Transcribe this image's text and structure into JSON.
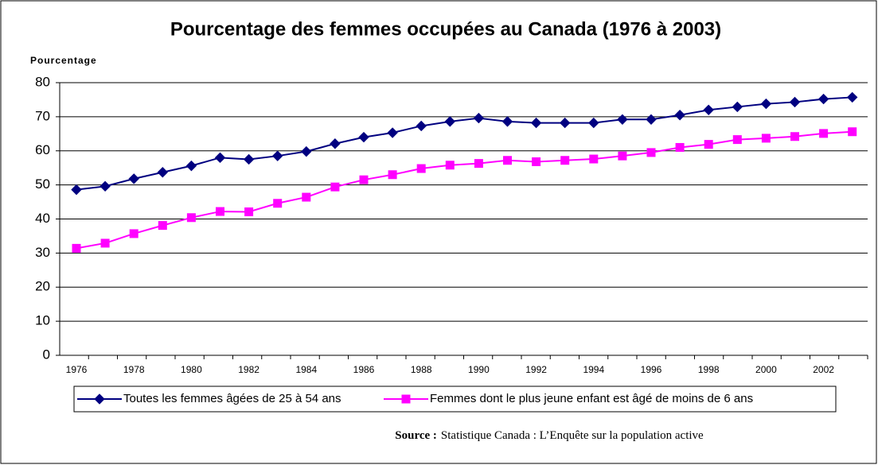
{
  "chart_data": {
    "type": "line",
    "title": "Pourcentage des femmes occupées au Canada (1976 à 2003)",
    "y_label": "Pourcentage",
    "categories": [
      "1976",
      null,
      "1978",
      null,
      "1980",
      null,
      "1982",
      null,
      "1984",
      null,
      "1986",
      null,
      "1988",
      null,
      "1990",
      null,
      "1992",
      null,
      "1994",
      null,
      "1996",
      null,
      "1998",
      null,
      "2000",
      null,
      "2002",
      null
    ],
    "series": [
      {
        "name": "Toutes les femmes âgées de 25 à 54 ans",
        "color": "#000080",
        "marker": "diamond",
        "values": [
          48.6,
          49.6,
          51.8,
          53.7,
          55.6,
          58.0,
          57.5,
          58.5,
          59.8,
          62.1,
          64.0,
          65.3,
          67.3,
          68.6,
          69.6,
          68.6,
          68.2,
          68.2,
          68.2,
          69.2,
          69.2,
          70.5,
          72.0,
          72.9,
          73.8,
          74.3,
          75.2,
          75.7
        ]
      },
      {
        "name": "Femmes dont le plus jeune enfant est âgé de moins de 6 ans",
        "color": "#ff00ff",
        "marker": "square",
        "values": [
          31.4,
          32.9,
          35.7,
          38.1,
          40.4,
          42.2,
          42.1,
          44.6,
          46.4,
          49.4,
          51.5,
          53.0,
          54.8,
          55.8,
          56.3,
          57.2,
          56.8,
          57.2,
          57.6,
          58.5,
          59.5,
          61.0,
          61.9,
          63.3,
          63.7,
          64.2,
          65.1,
          65.6
        ]
      }
    ],
    "ylim": [
      0,
      80
    ],
    "yticks": [
      0,
      10,
      20,
      30,
      40,
      50,
      60,
      70,
      80
    ],
    "grid": true,
    "legend": "bottom",
    "source_label": "Source :",
    "source_text": "Statistique Canada : L’Enquête sur la population active"
  }
}
